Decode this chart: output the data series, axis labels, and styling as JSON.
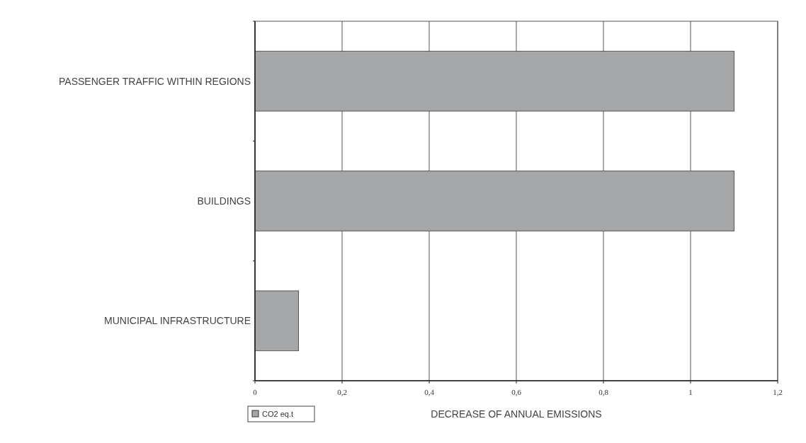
{
  "chart_data": {
    "type": "bar",
    "orientation": "horizontal",
    "xlabel": "DECREASE OF ANNUAL EMISSIONS",
    "categories": [
      "PASSENGER TRAFFIC WITHIN REGIONS",
      "BUILDINGS",
      "MUNICIPAL INFRASTRUCTURE"
    ],
    "series": [
      {
        "name": "CO2 eq.t",
        "color": "#a6a7a9",
        "values": [
          1.1,
          1.1,
          0.1
        ]
      }
    ],
    "xlim": [
      0,
      1.2
    ],
    "xticks": [
      0,
      {
        "value": 0.2,
        "label": "0,2"
      },
      {
        "value": 0.4,
        "label": "0,4"
      },
      {
        "value": 0.6,
        "label": "0,6"
      },
      {
        "value": 0.8,
        "label": "0,8"
      },
      1,
      {
        "value": 1.2,
        "label": "1,2"
      }
    ],
    "grid": "x",
    "legend": "bottom left"
  }
}
